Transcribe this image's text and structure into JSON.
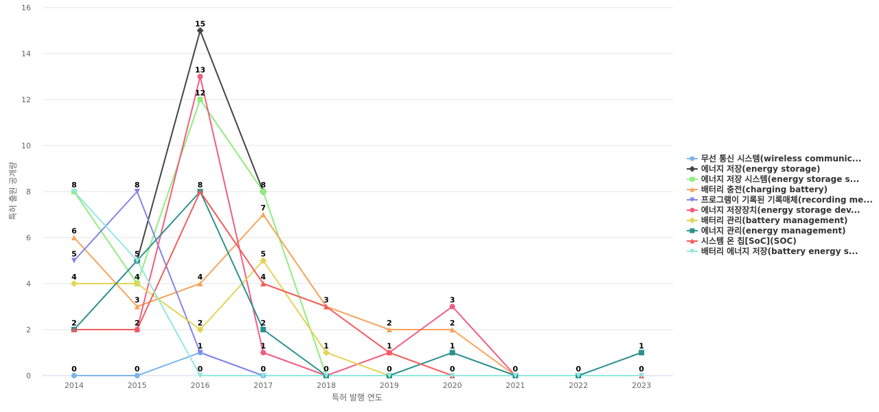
{
  "chart_data": {
    "type": "line",
    "title": "",
    "xlabel": "특허 발행 연도",
    "ylabel": "특허 출원 공개량",
    "ylim": [
      0,
      16
    ],
    "yticks": [
      0,
      2,
      4,
      6,
      8,
      10,
      12,
      14,
      16
    ],
    "grid": true,
    "legend_position": "right",
    "categories": [
      "2014",
      "2015",
      "2016",
      "2017",
      "2018",
      "2019",
      "2020",
      "2021",
      "2022",
      "2023"
    ],
    "series": [
      {
        "name": "무선 통신 시스템(wireless communic...",
        "color": "#7cb5ec",
        "marker": "circle",
        "values": [
          0,
          0,
          1,
          0,
          null,
          null,
          null,
          null,
          null,
          null
        ]
      },
      {
        "name": "에너지 저장(energy storage)",
        "color": "#434348",
        "marker": "diamond",
        "values": [
          null,
          5,
          15,
          8,
          null,
          null,
          null,
          null,
          null,
          null
        ]
      },
      {
        "name": "에너지 저장 시스템(energy storage s...",
        "color": "#90ed7d",
        "marker": "square",
        "values": [
          8,
          4,
          12,
          8,
          0,
          null,
          null,
          null,
          null,
          null
        ]
      },
      {
        "name": "배터리 충전(charging battery)",
        "color": "#f7a35c",
        "marker": "triangle",
        "values": [
          6,
          3,
          4,
          7,
          3,
          2,
          2,
          0,
          null,
          null
        ]
      },
      {
        "name": "프로그램이 기록된 기록매체(recording me...",
        "color": "#8085e9",
        "marker": "triangle-down",
        "values": [
          5,
          8,
          1,
          0,
          null,
          null,
          null,
          null,
          null,
          null
        ]
      },
      {
        "name": "에너지 저장장치(energy storage dev...",
        "color": "#f15c80",
        "marker": "circle",
        "values": [
          2,
          2,
          13,
          1,
          0,
          1,
          3,
          0,
          null,
          null
        ]
      },
      {
        "name": "배터리 관리(battery management)",
        "color": "#e4d354",
        "marker": "diamond",
        "values": [
          4,
          4,
          2,
          5,
          1,
          0,
          null,
          null,
          null,
          null
        ]
      },
      {
        "name": "에너지 관리(energy management)",
        "color": "#2b908f",
        "marker": "square",
        "values": [
          2,
          5,
          8,
          2,
          0,
          0,
          1,
          0,
          0,
          1
        ]
      },
      {
        "name": "시스템 온 칩[SoC](SOC)",
        "color": "#f45b5b",
        "marker": "triangle",
        "values": [
          2,
          2,
          8,
          4,
          3,
          1,
          0,
          null,
          null,
          0
        ]
      },
      {
        "name": "배터리 에너지 저장(battery energy s...",
        "color": "#91e8e1",
        "marker": "triangle-down",
        "values": [
          8,
          5,
          0,
          0,
          0,
          0,
          0,
          0,
          0,
          0
        ]
      }
    ],
    "data_labels": [
      {
        "category": "2014",
        "text": "8",
        "value": 8
      },
      {
        "category": "2014",
        "text": "6",
        "value": 6
      },
      {
        "category": "2014",
        "text": "5",
        "value": 5
      },
      {
        "category": "2014",
        "text": "4",
        "value": 4
      },
      {
        "category": "2014",
        "text": "2",
        "value": 2
      },
      {
        "category": "2014",
        "text": "0",
        "value": 0
      },
      {
        "category": "2015",
        "text": "8",
        "value": 8
      },
      {
        "category": "2015",
        "text": "5",
        "value": 5
      },
      {
        "category": "2015",
        "text": "4",
        "value": 4
      },
      {
        "category": "2015",
        "text": "3",
        "value": 3
      },
      {
        "category": "2015",
        "text": "2",
        "value": 2
      },
      {
        "category": "2015",
        "text": "0",
        "value": 0
      },
      {
        "category": "2016",
        "text": "15",
        "value": 15
      },
      {
        "category": "2016",
        "text": "13",
        "value": 13
      },
      {
        "category": "2016",
        "text": "12",
        "value": 12
      },
      {
        "category": "2016",
        "text": "8",
        "value": 8
      },
      {
        "category": "2016",
        "text": "4",
        "value": 4
      },
      {
        "category": "2016",
        "text": "2",
        "value": 2
      },
      {
        "category": "2016",
        "text": "1",
        "value": 1
      },
      {
        "category": "2016",
        "text": "0",
        "value": 0
      },
      {
        "category": "2017",
        "text": "8",
        "value": 8
      },
      {
        "category": "2017",
        "text": "7",
        "value": 7
      },
      {
        "category": "2017",
        "text": "5",
        "value": 5
      },
      {
        "category": "2017",
        "text": "4",
        "value": 4
      },
      {
        "category": "2017",
        "text": "2",
        "value": 2
      },
      {
        "category": "2017",
        "text": "1",
        "value": 1
      },
      {
        "category": "2017",
        "text": "0",
        "value": 0
      },
      {
        "category": "2018",
        "text": "3",
        "value": 3
      },
      {
        "category": "2018",
        "text": "1",
        "value": 1
      },
      {
        "category": "2018",
        "text": "0",
        "value": 0
      },
      {
        "category": "2019",
        "text": "2",
        "value": 2
      },
      {
        "category": "2019",
        "text": "1",
        "value": 1
      },
      {
        "category": "2019",
        "text": "0",
        "value": 0
      },
      {
        "category": "2020",
        "text": "3",
        "value": 3
      },
      {
        "category": "2020",
        "text": "2",
        "value": 2
      },
      {
        "category": "2020",
        "text": "1",
        "value": 1
      },
      {
        "category": "2020",
        "text": "0",
        "value": 0
      },
      {
        "category": "2021",
        "text": "0",
        "value": 0
      },
      {
        "category": "2022",
        "text": "0",
        "value": 0
      },
      {
        "category": "2023",
        "text": "1",
        "value": 1
      },
      {
        "category": "2023",
        "text": "0",
        "value": 0
      }
    ]
  }
}
